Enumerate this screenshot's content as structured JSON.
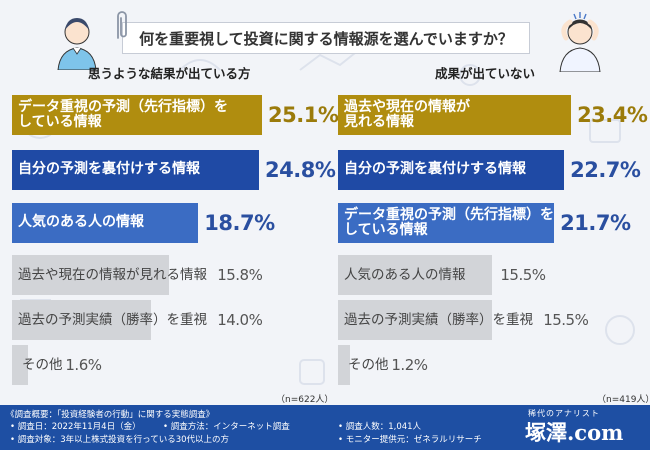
{
  "title": "何を重要視して投資に関する情報源を選んでいますか？",
  "colors": {
    "gold": "#b08d0f",
    "blue": "#1f4aa5",
    "blue_light": "#3b6cc3",
    "gray": "#d2d4d8",
    "gold_text": "#9b7b0b",
    "blue_text": "#2a4fa0",
    "footer": "#1e4fa3"
  },
  "chart_data": [
    {
      "type": "bar",
      "title": "思うような結果が出ている方",
      "n_note": "（n=622人）",
      "unit": "%",
      "categories": [
        "データ重視の予測（先行指標）をしている情報",
        "自分の予測を裏付けする情報",
        "人気のある人の情報",
        "過去や現在の情報が見れる情報",
        "過去の予測実績（勝率）を重視",
        "その他"
      ],
      "values": [
        25.1,
        24.8,
        18.7,
        15.8,
        14.0,
        1.6
      ],
      "value_labels": [
        "25.1%",
        "24.8%",
        "18.7%",
        "15.8%",
        "14.0%",
        "1.6%"
      ],
      "label_lines": [
        [
          "データ重視の予測（先行指標）を",
          "している情報"
        ],
        [
          "自分の予測を裏付けする情報"
        ],
        [
          "人気のある人の情報"
        ],
        [
          "過去や現在の情報が見れる情報"
        ],
        [
          "過去の予測実績（勝率）を重視"
        ],
        [
          "その他"
        ]
      ],
      "highlight": [
        "gold",
        "blue",
        "blue_light",
        "gray",
        "gray",
        "gray"
      ]
    },
    {
      "type": "bar",
      "title": "成果が出ていない",
      "n_note": "（n=419人）",
      "unit": "%",
      "categories": [
        "過去や現在の情報が見れる情報",
        "自分の予測を裏付けする情報",
        "データ重視の予測（先行指標）をしている情報",
        "人気のある人の情報",
        "過去の予測実績（勝率）を重視",
        "その他"
      ],
      "values": [
        23.4,
        22.7,
        21.7,
        15.5,
        15.5,
        1.2
      ],
      "value_labels": [
        "23.4%",
        "22.7%",
        "21.7%",
        "15.5%",
        "15.5%",
        "1.2%"
      ],
      "label_lines": [
        [
          "過去や現在の情報が",
          "見れる情報"
        ],
        [
          "自分の予測を裏付けする情報"
        ],
        [
          "データ重視の予測（先行指標）を",
          "している情報"
        ],
        [
          "人気のある人の情報"
        ],
        [
          "過去の予測実績（勝率）を重視"
        ],
        [
          "その他"
        ]
      ],
      "highlight": [
        "gold",
        "blue",
        "blue_light",
        "gray",
        "gray",
        "gray"
      ]
    }
  ],
  "footer": {
    "heading": "《調査概要：「投資経験者の行動」に関する実態調査》",
    "items": [
      "• 調査日：2022年11月4日（金）",
      "• 調査方法：インターネット調査",
      "• 調査人数：1,041人",
      "• 調査対象：3年以上株式投資を行っている30代以上の方",
      "• モニター提供元：ゼネラルリサーチ"
    ],
    "brand_tagline": "稀代のアナリスト",
    "brand": "塚澤.com"
  }
}
